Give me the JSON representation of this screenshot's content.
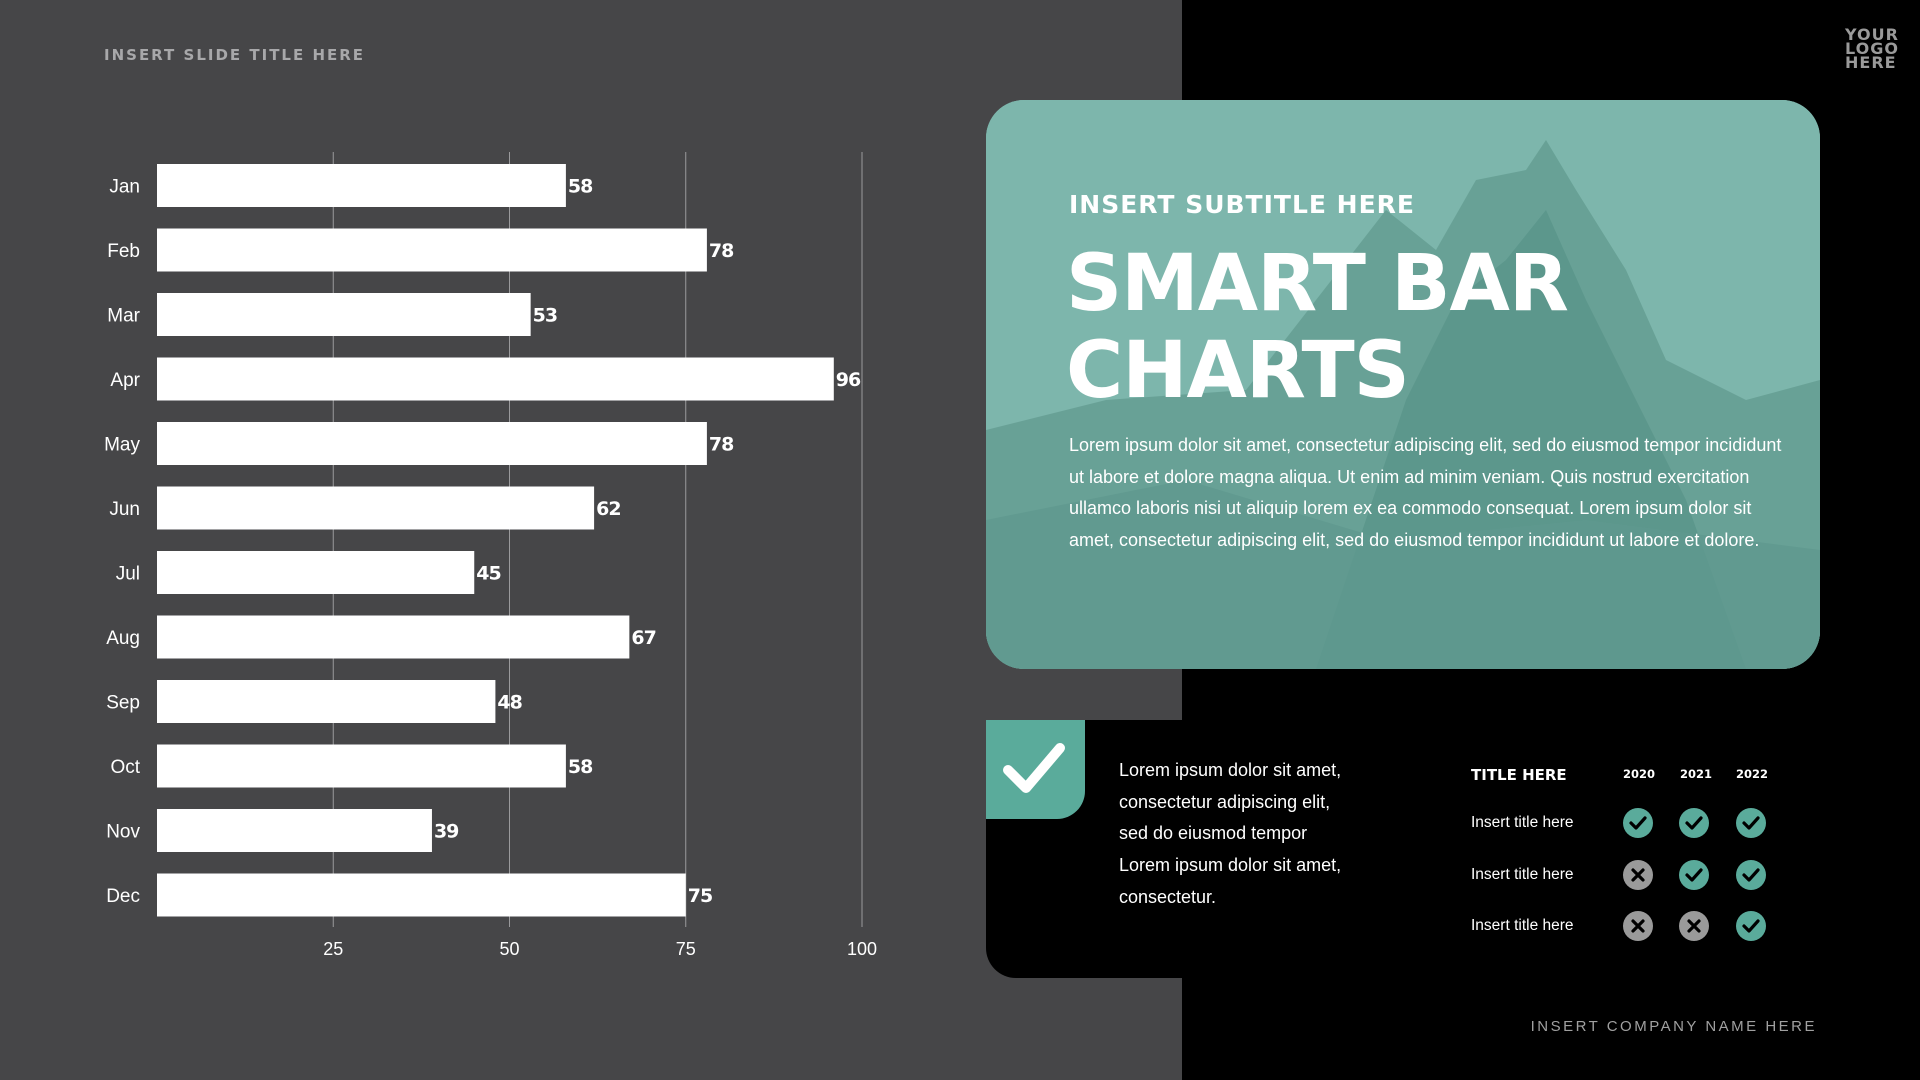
{
  "slide_title": "INSERT SLIDE TITLE HERE",
  "logo": [
    "YOUR",
    "LOGO",
    "HERE"
  ],
  "card": {
    "subtitle": "INSERT SUBTITLE HERE",
    "title_line1": "SMART BAR",
    "title_line2": "CHARTS",
    "body": "Lorem ipsum dolor sit amet, consectetur adipiscing elit, sed do eiusmod tempor incididunt ut labore et dolore magna aliqua. Ut enim ad minim veniam. Quis nostrud exercitation ullamco laboris nisi ut aliquip lorem ex ea commodo consequat. Lorem ipsum dolor sit amet, consectetur adipiscing elit, sed do eiusmod tempor incididunt ut labore et dolore."
  },
  "bottom_text": "Lorem ipsum dolor sit amet, consectetur adipiscing elit, sed do eiusmod tempor Lorem ipsum dolor sit amet, consectetur.",
  "table": {
    "header": "TITLE HERE",
    "years": [
      "2020",
      "2021",
      "2022"
    ],
    "rows": [
      {
        "label": "Insert title here",
        "values": [
          true,
          true,
          true
        ]
      },
      {
        "label": "Insert title here",
        "values": [
          false,
          true,
          true
        ]
      },
      {
        "label": "Insert title here",
        "values": [
          false,
          false,
          true
        ]
      }
    ]
  },
  "company": "INSERT COMPANY NAME HERE",
  "colors": {
    "accent": "#5aab9b",
    "cross": "#9a9a9a",
    "panel": "#464648",
    "card": "#7db6ac"
  },
  "chart_data": {
    "type": "bar",
    "orientation": "horizontal",
    "categories": [
      "Jan",
      "Feb",
      "Mar",
      "Apr",
      "May",
      "Jun",
      "Jul",
      "Aug",
      "Sep",
      "Oct",
      "Nov",
      "Dec"
    ],
    "values": [
      58,
      78,
      53,
      96,
      78,
      62,
      45,
      67,
      48,
      58,
      39,
      75
    ],
    "xticks": [
      25,
      50,
      75,
      100
    ],
    "xlim": [
      0,
      100
    ],
    "grid": true,
    "title": "",
    "xlabel": "",
    "ylabel": ""
  }
}
